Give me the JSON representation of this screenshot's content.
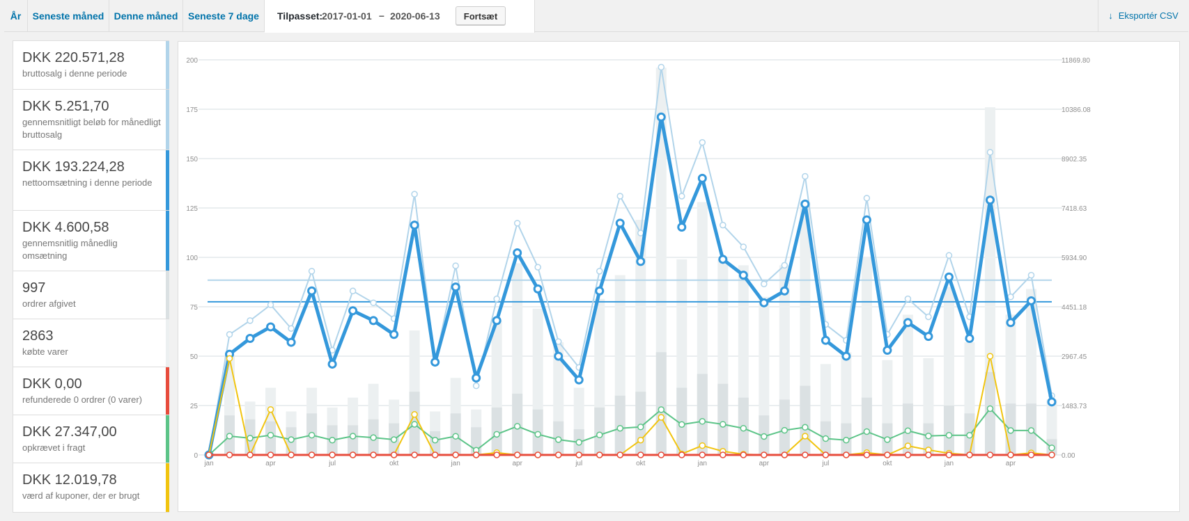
{
  "tabs": [
    {
      "label": "År"
    },
    {
      "label": "Seneste måned"
    },
    {
      "label": "Denne måned"
    },
    {
      "label": "Seneste 7 dage"
    }
  ],
  "custom": {
    "label": "Tilpasset:",
    "from": "2017-01-01",
    "dash": "–",
    "to": "2020-06-13",
    "button": "Fortsæt"
  },
  "export": {
    "icon": "download-arrow-icon",
    "label": "Eksportér CSV"
  },
  "legend": [
    {
      "amount": "DKK 220.571,28",
      "desc": "bruttosalg i denne periode",
      "color": "#b1d4ea"
    },
    {
      "amount": "DKK 5.251,70",
      "desc": "gennemsnitligt beløb for månedligt bruttosalg",
      "color": "#b1d4ea"
    },
    {
      "amount": "DKK 193.224,28",
      "desc": "nettoomsætning i denne periode",
      "color": "#3498db"
    },
    {
      "amount": "DKK 4.600,58",
      "desc": "gennemsnitlig månedlig omsætning",
      "color": "#3498db"
    },
    {
      "amount": "997",
      "desc": "ordrer afgivet",
      "color": "#dbe1e3"
    },
    {
      "amount": "2863",
      "desc": "købte varer",
      "color": "#ecf0f1"
    },
    {
      "amount": "DKK 0,00",
      "desc": "refunderede 0 ordrer (0 varer)",
      "color": "#e74c3c"
    },
    {
      "amount": "DKK 27.347,00",
      "desc": "opkrævet i fragt",
      "color": "#5cc488"
    },
    {
      "amount": "DKK 12.019,78",
      "desc": "værd af kuponer, der er brugt",
      "color": "#f1c40f"
    }
  ],
  "chart_data": {
    "type": "line",
    "grid": true,
    "categories": [
      "2017-01",
      "2017-02",
      "2017-03",
      "2017-04",
      "2017-05",
      "2017-06",
      "2017-07",
      "2017-08",
      "2017-09",
      "2017-10",
      "2017-11",
      "2017-12",
      "2018-01",
      "2018-02",
      "2018-03",
      "2018-04",
      "2018-05",
      "2018-06",
      "2018-07",
      "2018-08",
      "2018-09",
      "2018-10",
      "2018-11",
      "2018-12",
      "2019-01",
      "2019-02",
      "2019-03",
      "2019-04",
      "2019-05",
      "2019-06",
      "2019-07",
      "2019-08",
      "2019-09",
      "2019-10",
      "2019-11",
      "2019-12",
      "2020-01",
      "2020-02",
      "2020-03",
      "2020-04",
      "2020-05",
      "2020-06"
    ],
    "x_tick_labels": [
      "jan",
      "apr",
      "jul",
      "okt",
      "jan",
      "apr",
      "jul",
      "okt",
      "jan",
      "apr",
      "jul",
      "okt",
      "jan",
      "apr"
    ],
    "x_tick_index": [
      0,
      3,
      6,
      9,
      12,
      15,
      18,
      21,
      24,
      27,
      30,
      33,
      36,
      39
    ],
    "y_left": {
      "ticks": [
        0,
        25,
        50,
        75,
        100,
        125,
        150,
        175,
        200
      ],
      "ylim": [
        0,
        200
      ]
    },
    "y_right": {
      "ticks": [
        "0.00",
        "1483.73",
        "2967.45",
        "4451.18",
        "5934.90",
        "7418.63",
        "8902.35",
        "10386.08",
        "11869.80"
      ],
      "ylim": [
        0,
        11869.8
      ]
    },
    "series": [
      {
        "kind": "bar",
        "axis": "left",
        "color": "#ecf0f1",
        "values": [
          0,
          50,
          27,
          34,
          22,
          34,
          24,
          29,
          36,
          28,
          63,
          22,
          39,
          23,
          68,
          97,
          74,
          57,
          34,
          79,
          91,
          119,
          196,
          99,
          128,
          99,
          96,
          80,
          96,
          128,
          46,
          52,
          100,
          48,
          71,
          49,
          85,
          57,
          176,
          71,
          84,
          28
        ]
      },
      {
        "kind": "bar",
        "axis": "left",
        "color": "#dbe1e3",
        "values": [
          0,
          20,
          18,
          17,
          14,
          21,
          15,
          15,
          18,
          16,
          32,
          12,
          21,
          14,
          24,
          31,
          23,
          17,
          13,
          24,
          30,
          32,
          52,
          34,
          41,
          36,
          29,
          20,
          28,
          35,
          17,
          16,
          29,
          16,
          26,
          16,
          25,
          21,
          42,
          26,
          26,
          8
        ]
      },
      {
        "kind": "line",
        "axis": "right",
        "color": "#b1d4ea",
        "values": [
          0,
          3620,
          4036,
          4510,
          3798,
          5520,
          3146,
          4926,
          4570,
          4096,
          7834,
          2788,
          5682,
          2076,
          4688,
          6962,
          5640,
          3404,
          2628,
          5520,
          7774,
          6666,
          11650,
          7774,
          9388,
          6904,
          6250,
          5136,
          5698,
          8370,
          3920,
          3442,
          7714,
          3620,
          4688,
          4148,
          5994,
          4148,
          9092,
          4748,
          5400,
          1780
        ]
      },
      {
        "kind": "line",
        "axis": "right",
        "color": "#3498db",
        "values": [
          0,
          3026,
          3500,
          3846,
          3384,
          4926,
          2728,
          4332,
          4036,
          3620,
          6904,
          2788,
          5044,
          2312,
          4036,
          6072,
          4986,
          2966,
          2254,
          4926,
          6962,
          5812,
          10150,
          6844,
          8310,
          5876,
          5400,
          4570,
          4926,
          7536,
          3442,
          2966,
          7062,
          3144,
          3976,
          3560,
          5344,
          3500,
          7656,
          3976,
          4630,
          1592
        ]
      },
      {
        "kind": "line",
        "axis": "right",
        "color": "#5cc488",
        "values": [
          0,
          564,
          504,
          594,
          460,
          594,
          444,
          564,
          520,
          460,
          920,
          444,
          560,
          140,
          620,
          860,
          620,
          460,
          378,
          600,
          800,
          840,
          1360,
          914,
          1008,
          920,
          800,
          554,
          740,
          830,
          490,
          444,
          700,
          460,
          726,
          570,
          590,
          590,
          1390,
          734,
          734,
          212
        ]
      },
      {
        "kind": "line",
        "axis": "right",
        "color": "#f1c40f",
        "values": [
          0,
          2898,
          0,
          1364,
          0,
          0,
          0,
          0,
          0,
          0,
          1216,
          0,
          0,
          0,
          68,
          0,
          0,
          0,
          0,
          0,
          0,
          444,
          1128,
          30,
          280,
          110,
          20,
          0,
          0,
          564,
          0,
          0,
          68,
          0,
          272,
          150,
          50,
          0,
          2966,
          0,
          60,
          0
        ]
      },
      {
        "kind": "line",
        "axis": "right",
        "color": "#e74c3c",
        "values": [
          0,
          0,
          0,
          0,
          0,
          0,
          0,
          0,
          0,
          0,
          0,
          0,
          0,
          0,
          0,
          0,
          0,
          0,
          0,
          0,
          0,
          0,
          0,
          0,
          0,
          0,
          0,
          0,
          0,
          0,
          0,
          0,
          0,
          0,
          0,
          0,
          0,
          0,
          0,
          0,
          0,
          0
        ]
      }
    ],
    "avg_lines": [
      {
        "color": "#b1d4ea",
        "value": 5251.7,
        "axis": "right"
      },
      {
        "color": "#3498db",
        "value": 4600.58,
        "axis": "right"
      }
    ]
  }
}
